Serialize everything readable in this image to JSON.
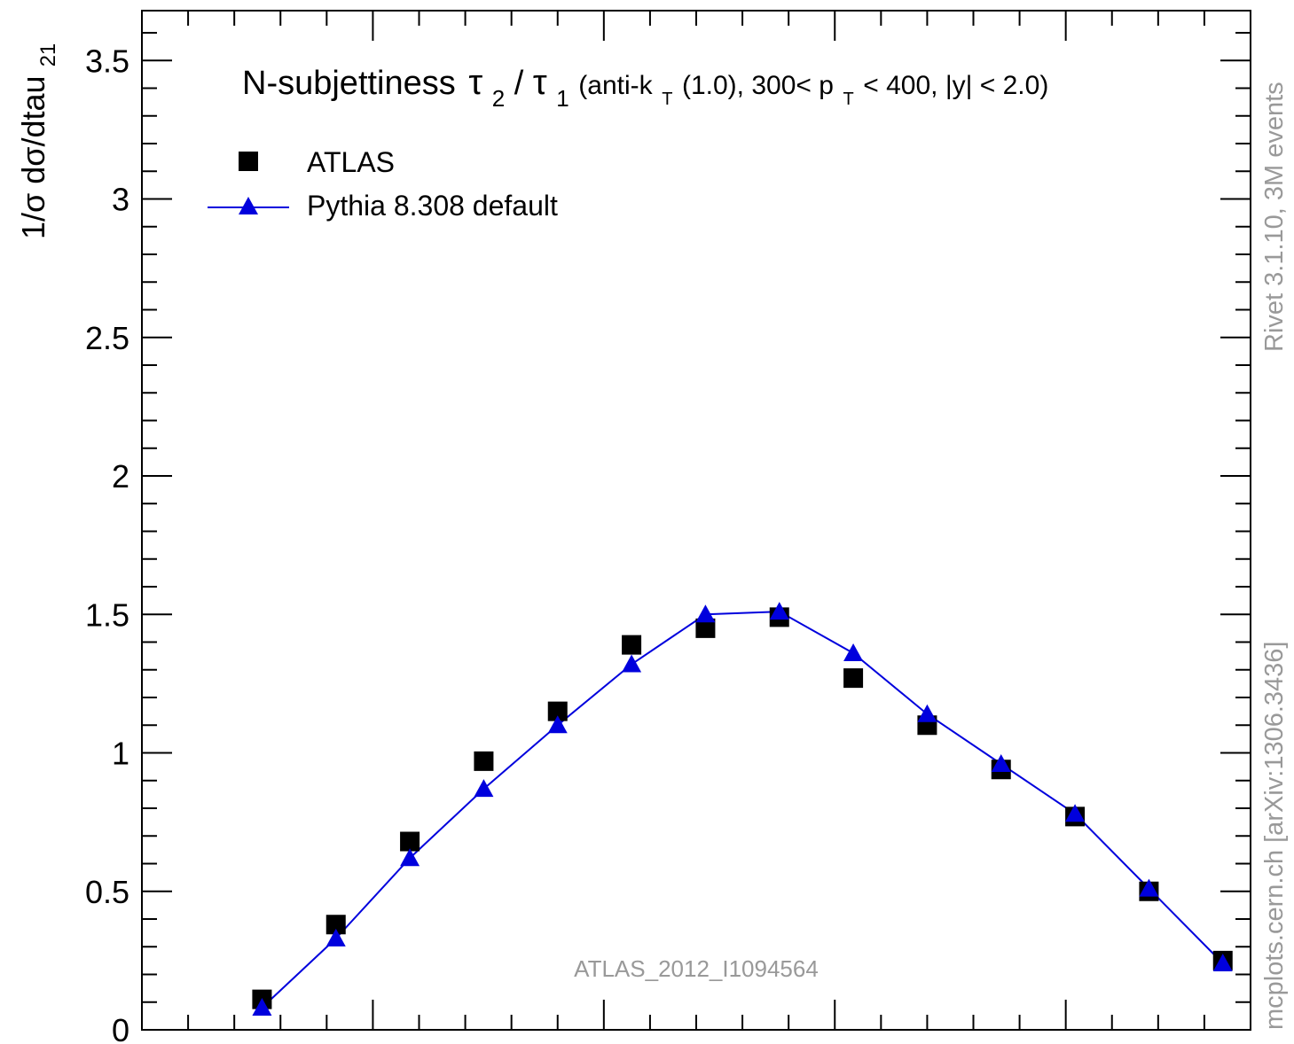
{
  "chart_data": {
    "type": "scatter",
    "title_main": "N-subjettiness",
    "title_tau2": "τ",
    "title_tau2_sub": "2",
    "title_slash": "/",
    "title_tau1": "τ",
    "title_tau1_sub": "1",
    "title_sel_a": " (anti-k",
    "title_sel_a_sub": "T",
    "title_sel_b": "(1.0), 300< p",
    "title_sel_b_sub": "T",
    "title_sel_c": " < 400, |y| < 2.0)",
    "ylabel": "1/σ dσ/dtau",
    "ylabel_sub": "21",
    "xlim": [
      0.0,
      1.2
    ],
    "ylim": [
      0.0,
      3.68
    ],
    "y_ticks": [
      0,
      0.5,
      1,
      1.5,
      2,
      2.5,
      3,
      3.5
    ],
    "y_tick_labels": [
      "0",
      "0.5",
      "1",
      "1.5",
      "2",
      "2.5",
      "3",
      "3.5"
    ],
    "x": [
      0.13,
      0.21,
      0.29,
      0.37,
      0.45,
      0.53,
      0.61,
      0.69,
      0.77,
      0.85,
      0.93,
      1.01,
      1.09,
      1.17
    ],
    "series": [
      {
        "name": "ATLAS",
        "marker": "square",
        "color": "#000000",
        "values": [
          0.11,
          0.38,
          0.68,
          0.97,
          1.15,
          1.39,
          1.45,
          1.49,
          1.27,
          1.1,
          0.94,
          0.77,
          0.5,
          0.25
        ]
      },
      {
        "name": "Pythia 8.308 default",
        "marker": "triangle",
        "color": "#0000dd",
        "values": [
          0.08,
          0.33,
          0.62,
          0.87,
          1.1,
          1.32,
          1.5,
          1.51,
          1.36,
          1.14,
          0.96,
          0.78,
          0.51,
          0.24
        ]
      }
    ],
    "legend_position": "top-left",
    "watermark": "ATLAS_2012_I1094564",
    "side_label_top": "Rivet 3.1.10,  3M events",
    "side_label_bottom": "mcplots.cern.ch [arXiv:1306.3436]"
  }
}
